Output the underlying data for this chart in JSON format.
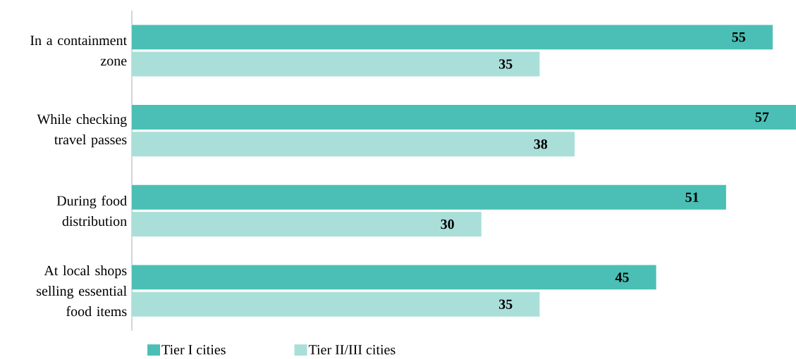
{
  "chart_data": {
    "type": "bar",
    "orientation": "horizontal",
    "categories": [
      "In a containment zone",
      "While checking travel passes",
      "During food distribution",
      "At local shops selling essential food items"
    ],
    "series": [
      {
        "name": "Tier I cities",
        "color": "#4bbfb5",
        "values": [
          55,
          57,
          51,
          45
        ]
      },
      {
        "name": "Tier II/III cities",
        "color": "#aadfd9",
        "values": [
          35,
          38,
          30,
          35
        ]
      }
    ],
    "data_labels": true,
    "legend": "bottom"
  }
}
